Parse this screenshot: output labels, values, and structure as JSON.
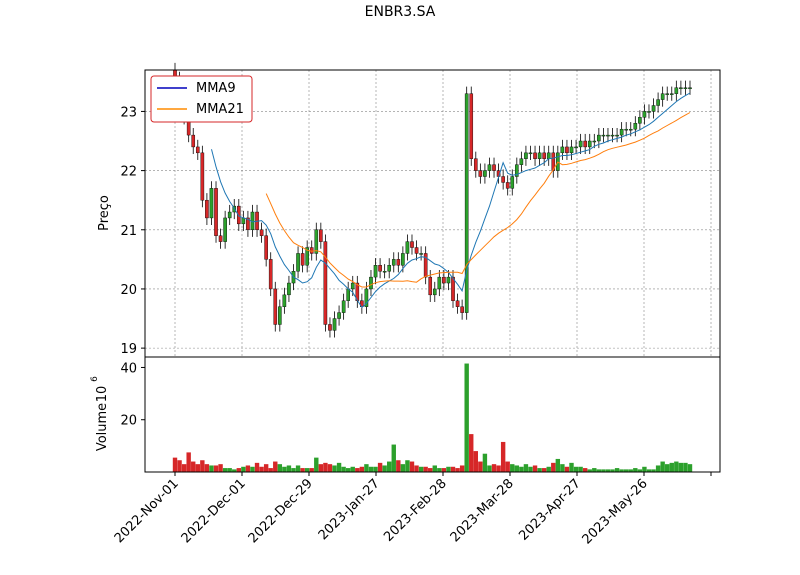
{
  "chart_data": {
    "type": "candlestick",
    "title": "ENBR3.SA",
    "ylabel_price": "Preço",
    "ylabel_volume": "Volume",
    "volume_exponent": "6",
    "price_ylim": [
      18.85,
      23.7
    ],
    "price_yticks": [
      "19",
      "20",
      "21",
      "22",
      "23"
    ],
    "volume_ylim": [
      0,
      44
    ],
    "volume_yticks": [
      "20",
      "40"
    ],
    "x_tick_labels": [
      "2022-Nov-01",
      "2022-Dec-01",
      "2022-Dec-29",
      "2023-Jan-27",
      "2023-Feb-28",
      "2023-Mar-28",
      "2023-Apr-27",
      "2023-May-26"
    ],
    "grid": true,
    "legend_position": "top-left",
    "legend": [
      {
        "name": "MMA9",
        "color": "#0000bb"
      },
      {
        "name": "MMA21",
        "color": "#ff8c00"
      }
    ],
    "colors": {
      "up": "#2ca02c",
      "down": "#d62728",
      "mma9_line": "#1f77b4",
      "mma21_line": "#ff7f0e"
    },
    "closes": [
      23.55,
      23.1,
      22.9,
      22.6,
      22.4,
      22.3,
      21.5,
      21.2,
      21.7,
      20.9,
      20.8,
      21.2,
      21.3,
      21.4,
      21.1,
      21.2,
      21.0,
      21.3,
      21.0,
      20.9,
      20.5,
      20.0,
      19.4,
      19.7,
      19.9,
      20.1,
      20.3,
      20.6,
      20.4,
      20.7,
      20.6,
      21.0,
      20.8,
      19.4,
      19.3,
      19.5,
      19.6,
      19.8,
      20.0,
      20.1,
      19.8,
      19.7,
      20.0,
      20.2,
      20.4,
      20.3,
      20.3,
      20.4,
      20.5,
      20.4,
      20.6,
      20.8,
      20.7,
      20.6,
      20.6,
      20.2,
      19.9,
      20.0,
      20.2,
      20.1,
      20.2,
      19.8,
      19.7,
      19.6,
      23.3,
      22.2,
      22.0,
      21.9,
      22.0,
      22.1,
      22.0,
      21.9,
      21.8,
      21.7,
      21.9,
      22.1,
      22.2,
      22.3,
      22.3,
      22.2,
      22.3,
      22.2,
      22.3,
      22.0,
      22.3,
      22.4,
      22.3,
      22.4,
      22.4,
      22.5,
      22.4,
      22.5,
      22.5,
      22.6,
      22.6,
      22.6,
      22.6,
      22.6,
      22.7,
      22.7,
      22.7,
      22.8,
      22.9,
      23.0,
      23.0,
      23.1,
      23.2,
      23.3,
      23.3,
      23.3,
      23.4,
      23.4,
      23.4,
      23.4
    ],
    "volumes": [
      5.5,
      4.5,
      3.0,
      7.5,
      4.0,
      3.0,
      4.5,
      3.0,
      2.5,
      2.5,
      3.0,
      1.5,
      1.5,
      1.0,
      1.5,
      2.0,
      2.5,
      2.0,
      3.5,
      2.0,
      3.0,
      1.5,
      4.0,
      3.0,
      2.0,
      2.5,
      1.5,
      2.5,
      1.5,
      1.5,
      1.5,
      5.5,
      3.0,
      3.5,
      3.0,
      2.5,
      3.5,
      2.0,
      1.5,
      2.0,
      1.5,
      2.0,
      3.0,
      2.0,
      2.0,
      3.5,
      2.5,
      4.0,
      10.5,
      4.5,
      3.0,
      4.5,
      4.0,
      2.5,
      2.0,
      2.0,
      1.5,
      2.5,
      1.5,
      1.5,
      2.0,
      2.0,
      1.5,
      2.5,
      41.5,
      14.5,
      8.0,
      4.0,
      7.0,
      2.5,
      3.0,
      2.5,
      11.5,
      4.0,
      3.0,
      2.5,
      2.0,
      3.0,
      2.0,
      2.5,
      1.5,
      1.5,
      2.0,
      3.5,
      5.0,
      3.0,
      2.0,
      3.5,
      2.0,
      2.0,
      1.5,
      1.0,
      1.5,
      1.0,
      1.0,
      1.0,
      1.0,
      1.5,
      1.0,
      1.0,
      1.0,
      1.5,
      1.0,
      2.0,
      1.0,
      1.0,
      2.5,
      4.0,
      3.0,
      3.5,
      4.0,
      3.5,
      3.5,
      3.0
    ]
  }
}
